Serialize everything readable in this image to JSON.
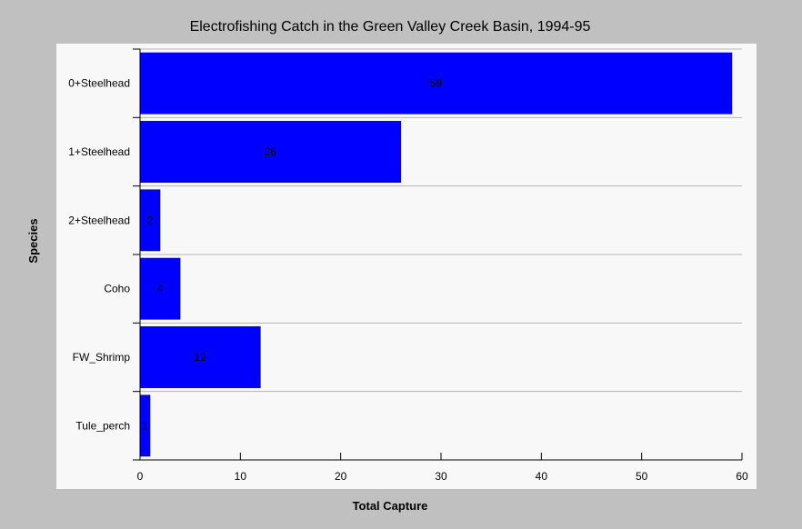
{
  "chart_data": {
    "type": "bar",
    "orientation": "horizontal",
    "title": "Electrofishing Catch in the Green Valley Creek Basin, 1994-95",
    "xlabel": "Total Capture",
    "ylabel": "Species",
    "categories": [
      "0+Steelhead",
      "1+Steelhead",
      "2+Steelhead",
      "Coho",
      "FW_Shrimp",
      "Tule_perch"
    ],
    "values": [
      59,
      26,
      2,
      4,
      12,
      1
    ],
    "data_labels": [
      "59",
      "26",
      "2",
      "4",
      "12",
      "1"
    ],
    "xlim": [
      0,
      60
    ],
    "xticks": [
      0,
      10,
      20,
      30,
      40,
      50,
      60
    ],
    "grid": "horizontal",
    "colors": {
      "bar": "#0000ff",
      "outer_background": "#c0c0c0",
      "plot_background": "#f8f8f8",
      "grid": "#b4b4b4"
    }
  }
}
